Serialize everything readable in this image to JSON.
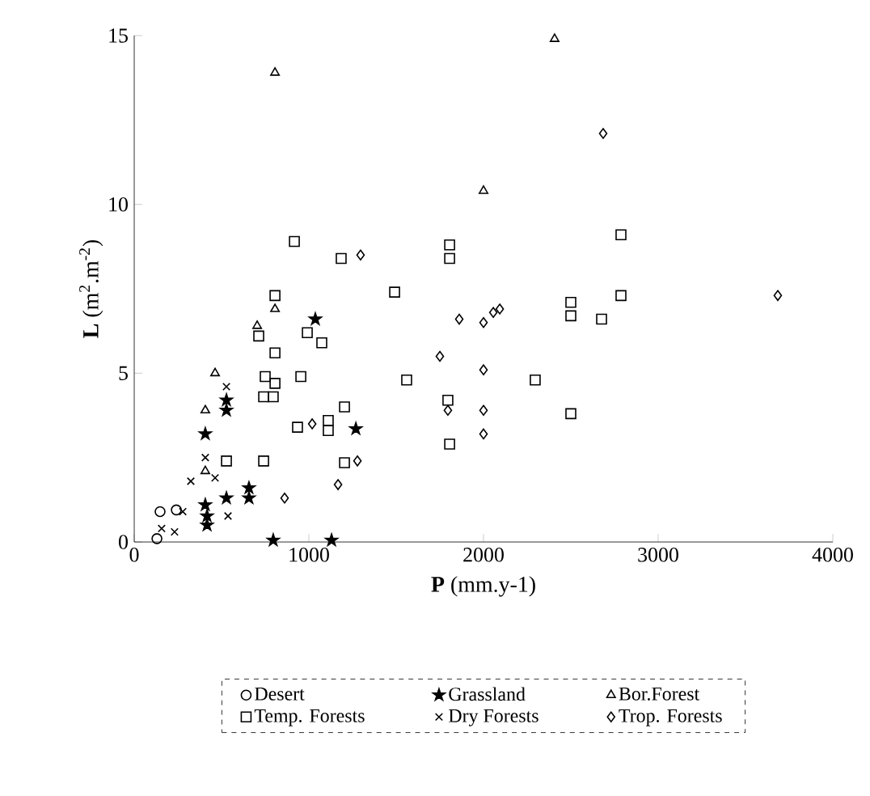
{
  "chart_data": {
    "type": "scatter",
    "xlabel": "**P** (mm.y-1)",
    "ylabel": "**L**  (m$^{2}$.m$^{-2}$)",
    "xlim": [
      0,
      4000
    ],
    "ylim": [
      0,
      15
    ],
    "xticks": [
      0,
      1000,
      2000,
      3000,
      4000
    ],
    "yticks": [
      0,
      5,
      10,
      15
    ],
    "grid": false,
    "legend": "bottom",
    "series": [
      {
        "name": "Desert",
        "color": "#000000",
        "marker": "circle",
        "x": [
          130,
          148,
          241
        ],
        "values": [
          0.1,
          0.9,
          0.95
        ]
      },
      {
        "name": "Grassland",
        "color": "#000000",
        "marker": "star",
        "x": [
          1037,
          528,
          528,
          407,
          1269,
          657,
          657,
          528,
          407,
          417,
          417,
          796,
          1130
        ],
        "values": [
          6.6,
          4.2,
          3.9,
          3.2,
          3.35,
          1.6,
          1.3,
          1.3,
          1.1,
          0.77,
          0.5,
          0.05,
          0.05
        ]
      },
      {
        "name": "Bor.Forest",
        "color": "#000000",
        "marker": "triangle",
        "x": [
          463,
          407,
          704,
          806,
          407,
          806,
          2407,
          2000
        ],
        "values": [
          5.0,
          3.9,
          6.4,
          6.9,
          2.1,
          13.9,
          14.9,
          10.4
        ]
      },
      {
        "name": "Temp. Forests",
        "color": "#000000",
        "marker": "square",
        "x": [
          806,
          713,
          991,
          1074,
          806,
          954,
          750,
          806,
          741,
          796,
          1204,
          935,
          1111,
          1111,
          528,
          741,
          1204,
          1491,
          1560,
          917,
          1185,
          1806,
          1806,
          2787,
          2500,
          2500,
          2676,
          2787,
          2296,
          1796,
          2500,
          1806
        ],
        "values": [
          7.3,
          6.1,
          6.2,
          5.9,
          5.6,
          4.9,
          4.9,
          4.7,
          4.3,
          4.3,
          4.0,
          3.4,
          3.6,
          3.3,
          2.4,
          2.4,
          2.35,
          7.4,
          4.8,
          8.9,
          8.4,
          8.8,
          8.4,
          9.1,
          7.1,
          6.7,
          6.6,
          7.3,
          4.8,
          4.2,
          3.8,
          2.9
        ]
      },
      {
        "name": "Dry Forests",
        "color": "#000000",
        "marker": "cross",
        "x": [
          528,
          407,
          324,
          463,
          537,
          278,
          231,
          157
        ],
        "values": [
          4.6,
          2.5,
          1.8,
          1.9,
          0.77,
          0.9,
          0.3,
          0.4
        ]
      },
      {
        "name": "Trop. Forests",
        "color": "#000000",
        "marker": "diamond",
        "x": [
          1019,
          1278,
          1167,
          861,
          1296,
          2685,
          1861,
          2000,
          2056,
          2093,
          1750,
          2000,
          1796,
          2000,
          2000,
          3685
        ],
        "values": [
          3.5,
          2.4,
          1.7,
          1.3,
          8.5,
          12.1,
          6.6,
          6.5,
          6.8,
          6.9,
          5.5,
          5.1,
          3.9,
          3.9,
          3.2,
          7.3
        ]
      }
    ]
  }
}
